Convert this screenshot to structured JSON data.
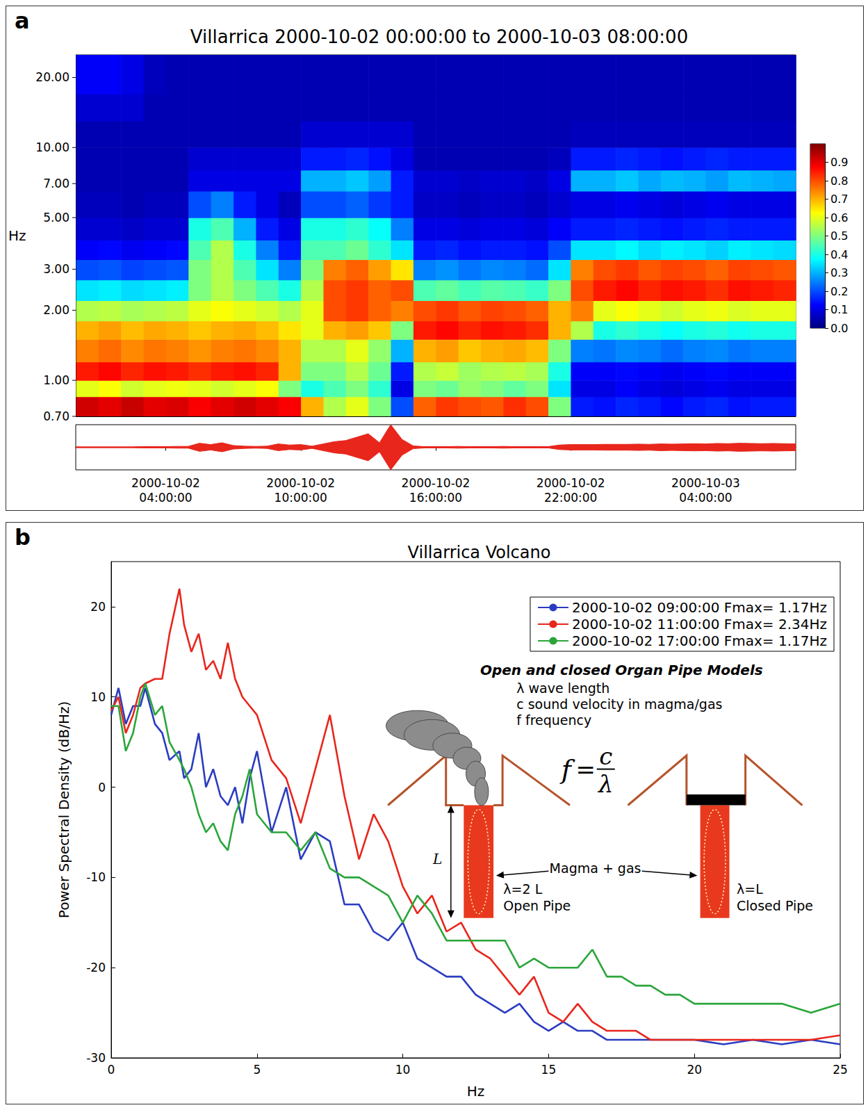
{
  "chart_data": [
    {
      "type": "heatmap",
      "panel": "a",
      "title": "Villarrica 2000-10-02 00:00:00 to 2000-10-03 08:00:00",
      "y_label": "Hz",
      "log": "y",
      "tick_labels": "y",
      "xlim": [
        "2000-10-02 00:00:00",
        "2000-10-03 08:00:00"
      ],
      "ylim": [
        0.7,
        25
      ],
      "yticks": [
        {
          "value": 0.7,
          "label": "0.70"
        },
        {
          "value": 1,
          "label": "1.00"
        },
        {
          "value": 2,
          "label": "2.00"
        },
        {
          "value": 3,
          "label": "3.00"
        },
        {
          "value": 5,
          "label": "5.00"
        },
        {
          "value": 7,
          "label": "7.00"
        },
        {
          "value": 10,
          "label": "10.00"
        },
        {
          "value": 20,
          "label": "20.00"
        }
      ],
      "x_edges": [
        "2000-10-02 00:00:00",
        "2000-10-02 01:00:00",
        "2000-10-02 02:00:00",
        "2000-10-02 03:00:00",
        "2000-10-02 04:00:00",
        "2000-10-02 05:00:00",
        "2000-10-02 06:00:00",
        "2000-10-02 07:00:00",
        "2000-10-02 08:00:00",
        "2000-10-02 09:00:00",
        "2000-10-02 10:00:00",
        "2000-10-02 11:00:00",
        "2000-10-02 12:00:00",
        "2000-10-02 13:00:00",
        "2000-10-02 14:00:00",
        "2000-10-02 15:00:00",
        "2000-10-02 16:00:00",
        "2000-10-02 17:00:00",
        "2000-10-02 18:00:00",
        "2000-10-02 19:00:00",
        "2000-10-02 20:00:00",
        "2000-10-02 21:00:00",
        "2000-10-02 22:00:00",
        "2000-10-02 23:00:00",
        "2000-10-03 00:00:00",
        "2000-10-03 01:00:00",
        "2000-10-03 02:00:00",
        "2000-10-03 03:00:00",
        "2000-10-03 04:00:00",
        "2000-10-03 05:00:00",
        "2000-10-03 06:00:00",
        "2000-10-03 07:00:00",
        "2000-10-03 08:00:00"
      ],
      "y_edges": [
        0.7,
        0.85,
        1.0,
        1.2,
        1.5,
        1.8,
        2.2,
        2.7,
        3.3,
        4,
        5,
        6.5,
        8,
        10,
        13,
        17,
        25
      ],
      "cells": [
        [
          0.92,
          0.9,
          0.93,
          0.9,
          0.91,
          0.88,
          0.9,
          0.92,
          0.9,
          0.88,
          0.7,
          0.55,
          0.6,
          0.5,
          0.2,
          0.78,
          0.82,
          0.8,
          0.79,
          0.83,
          0.8,
          0.5,
          0.15,
          0.14,
          0.16,
          0.15,
          0.13,
          0.15,
          0.16,
          0.14,
          0.15,
          0.15
        ],
        [
          0.6,
          0.62,
          0.58,
          0.6,
          0.61,
          0.6,
          0.58,
          0.6,
          0.62,
          0.5,
          0.4,
          0.45,
          0.5,
          0.42,
          0.1,
          0.5,
          0.48,
          0.52,
          0.5,
          0.47,
          0.5,
          0.35,
          0.1,
          0.1,
          0.12,
          0.1,
          0.09,
          0.1,
          0.11,
          0.1,
          0.1,
          0.1
        ],
        [
          0.85,
          0.87,
          0.84,
          0.86,
          0.85,
          0.83,
          0.85,
          0.86,
          0.84,
          0.7,
          0.5,
          0.5,
          0.55,
          0.48,
          0.15,
          0.55,
          0.57,
          0.53,
          0.55,
          0.56,
          0.54,
          0.4,
          0.12,
          0.12,
          0.13,
          0.12,
          0.11,
          0.12,
          0.13,
          0.12,
          0.12,
          0.12
        ],
        [
          0.75,
          0.77,
          0.74,
          0.76,
          0.75,
          0.73,
          0.75,
          0.76,
          0.74,
          0.7,
          0.55,
          0.55,
          0.6,
          0.52,
          0.3,
          0.7,
          0.72,
          0.68,
          0.7,
          0.71,
          0.69,
          0.5,
          0.25,
          0.24,
          0.26,
          0.25,
          0.23,
          0.25,
          0.26,
          0.24,
          0.25,
          0.25
        ],
        [
          0.7,
          0.72,
          0.69,
          0.71,
          0.7,
          0.68,
          0.7,
          0.71,
          0.69,
          0.65,
          0.6,
          0.7,
          0.72,
          0.68,
          0.5,
          0.85,
          0.87,
          0.84,
          0.86,
          0.85,
          0.83,
          0.7,
          0.55,
          0.4,
          0.42,
          0.4,
          0.38,
          0.4,
          0.41,
          0.39,
          0.4,
          0.4
        ],
        [
          0.55,
          0.56,
          0.54,
          0.55,
          0.56,
          0.6,
          0.62,
          0.6,
          0.58,
          0.55,
          0.6,
          0.8,
          0.82,
          0.78,
          0.75,
          0.8,
          0.82,
          0.79,
          0.81,
          0.8,
          0.78,
          0.7,
          0.75,
          0.6,
          0.62,
          0.6,
          0.58,
          0.6,
          0.61,
          0.59,
          0.6,
          0.6
        ],
        [
          0.35,
          0.36,
          0.34,
          0.35,
          0.36,
          0.5,
          0.55,
          0.5,
          0.45,
          0.4,
          0.55,
          0.8,
          0.82,
          0.78,
          0.8,
          0.45,
          0.47,
          0.44,
          0.46,
          0.45,
          0.43,
          0.5,
          0.8,
          0.85,
          0.87,
          0.84,
          0.86,
          0.85,
          0.83,
          0.86,
          0.85,
          0.84
        ],
        [
          0.2,
          0.21,
          0.19,
          0.2,
          0.21,
          0.5,
          0.55,
          0.45,
          0.35,
          0.25,
          0.5,
          0.75,
          0.78,
          0.72,
          0.65,
          0.25,
          0.27,
          0.24,
          0.26,
          0.25,
          0.23,
          0.35,
          0.75,
          0.8,
          0.82,
          0.79,
          0.81,
          0.8,
          0.78,
          0.81,
          0.8,
          0.79
        ],
        [
          0.12,
          0.13,
          0.11,
          0.12,
          0.13,
          0.45,
          0.55,
          0.4,
          0.25,
          0.15,
          0.45,
          0.45,
          0.48,
          0.42,
          0.35,
          0.15,
          0.16,
          0.14,
          0.15,
          0.15,
          0.14,
          0.2,
          0.35,
          0.35,
          0.37,
          0.34,
          0.36,
          0.35,
          0.33,
          0.36,
          0.35,
          0.34
        ],
        [
          0.08,
          0.08,
          0.07,
          0.08,
          0.08,
          0.4,
          0.45,
          0.3,
          0.15,
          0.1,
          0.4,
          0.4,
          0.42,
          0.38,
          0.25,
          0.1,
          0.1,
          0.09,
          0.1,
          0.1,
          0.09,
          0.12,
          0.15,
          0.15,
          0.16,
          0.15,
          0.14,
          0.15,
          0.16,
          0.15,
          0.15,
          0.15
        ],
        [
          0.06,
          0.06,
          0.05,
          0.06,
          0.06,
          0.2,
          0.25,
          0.15,
          0.1,
          0.06,
          0.2,
          0.2,
          0.22,
          0.18,
          0.15,
          0.07,
          0.07,
          0.06,
          0.07,
          0.07,
          0.06,
          0.08,
          0.1,
          0.1,
          0.11,
          0.1,
          0.09,
          0.1,
          0.11,
          0.1,
          0.1,
          0.1
        ],
        [
          0.05,
          0.05,
          0.05,
          0.05,
          0.05,
          0.1,
          0.1,
          0.1,
          0.1,
          0.1,
          0.3,
          0.3,
          0.32,
          0.28,
          0.15,
          0.08,
          0.08,
          0.07,
          0.08,
          0.08,
          0.07,
          0.1,
          0.3,
          0.3,
          0.32,
          0.29,
          0.31,
          0.3,
          0.28,
          0.31,
          0.3,
          0.29
        ],
        [
          0.05,
          0.05,
          0.05,
          0.05,
          0.05,
          0.08,
          0.08,
          0.08,
          0.08,
          0.08,
          0.15,
          0.15,
          0.16,
          0.14,
          0.1,
          0.05,
          0.05,
          0.05,
          0.05,
          0.05,
          0.05,
          0.06,
          0.15,
          0.15,
          0.16,
          0.15,
          0.14,
          0.15,
          0.16,
          0.15,
          0.15,
          0.15
        ],
        [
          0.05,
          0.05,
          0.05,
          0.05,
          0.05,
          0.05,
          0.05,
          0.05,
          0.05,
          0.05,
          0.08,
          0.08,
          0.08,
          0.08,
          0.08,
          0.05,
          0.05,
          0.05,
          0.05,
          0.05,
          0.05,
          0.05,
          0.06,
          0.06,
          0.06,
          0.06,
          0.06,
          0.06,
          0.06,
          0.06,
          0.06,
          0.06
        ],
        [
          0.08,
          0.08,
          0.08,
          0.05,
          0.05,
          0.05,
          0.05,
          0.05,
          0.05,
          0.05,
          0.05,
          0.05,
          0.05,
          0.05,
          0.05,
          0.05,
          0.05,
          0.05,
          0.05,
          0.05,
          0.05,
          0.05,
          0.05,
          0.05,
          0.05,
          0.05,
          0.05,
          0.05,
          0.05,
          0.05,
          0.05,
          0.05
        ],
        [
          0.12,
          0.12,
          0.1,
          0.06,
          0.05,
          0.05,
          0.05,
          0.05,
          0.05,
          0.05,
          0.05,
          0.05,
          0.05,
          0.05,
          0.05,
          0.05,
          0.05,
          0.05,
          0.05,
          0.05,
          0.05,
          0.05,
          0.05,
          0.05,
          0.05,
          0.05,
          0.05,
          0.05,
          0.05,
          0.05,
          0.05,
          0.05
        ]
      ],
      "colorbar": {
        "range": [
          0,
          1
        ],
        "ticks": [
          {
            "value": 0,
            "label": "0.0"
          },
          {
            "value": 0.1,
            "label": "0.1"
          },
          {
            "value": 0.2,
            "label": "0.2"
          },
          {
            "value": 0.3,
            "label": "0.3"
          },
          {
            "value": 0.4,
            "label": "0.4"
          },
          {
            "value": 0.5,
            "label": "0.5"
          },
          {
            "value": 0.6,
            "label": "0.6"
          },
          {
            "value": 0.7,
            "label": "0.7"
          },
          {
            "value": 0.8,
            "label": "0.8"
          },
          {
            "value": 0.9,
            "label": "0.9"
          }
        ]
      }
    },
    {
      "type": "envelope",
      "tick_labels": "x",
      "color": "#e8261c",
      "xlim": [
        "2000-10-02 00:00:00",
        "2000-10-03 08:00:00"
      ],
      "ylim": [
        -1,
        1
      ],
      "xticks": [
        "2000-10-02 04:00:00",
        "2000-10-02 10:00:00",
        "2000-10-02 16:00:00",
        "2000-10-02 22:00:00",
        "2000-10-03 04:00:00"
      ],
      "x": [
        "2000-10-02 00:00:00",
        "2000-10-02 00:30:00",
        "2000-10-02 01:00:00",
        "2000-10-02 01:30:00",
        "2000-10-02 02:00:00",
        "2000-10-02 02:30:00",
        "2000-10-02 03:00:00",
        "2000-10-02 03:30:00",
        "2000-10-02 04:00:00",
        "2000-10-02 04:30:00",
        "2000-10-02 05:00:00",
        "2000-10-02 05:30:00",
        "2000-10-02 06:00:00",
        "2000-10-02 06:30:00",
        "2000-10-02 07:00:00",
        "2000-10-02 07:30:00",
        "2000-10-02 08:00:00",
        "2000-10-02 08:30:00",
        "2000-10-02 09:00:00",
        "2000-10-02 09:30:00",
        "2000-10-02 10:00:00",
        "2000-10-02 10:30:00",
        "2000-10-02 11:00:00",
        "2000-10-02 11:30:00",
        "2000-10-02 12:00:00",
        "2000-10-02 12:30:00",
        "2000-10-02 13:00:00",
        "2000-10-02 13:30:00",
        "2000-10-02 14:00:00",
        "2000-10-02 14:30:00",
        "2000-10-02 15:00:00",
        "2000-10-02 15:30:00",
        "2000-10-02 16:00:00",
        "2000-10-02 16:30:00",
        "2000-10-02 17:00:00",
        "2000-10-02 17:30:00",
        "2000-10-02 18:00:00",
        "2000-10-02 18:30:00",
        "2000-10-02 19:00:00",
        "2000-10-02 19:30:00",
        "2000-10-02 20:00:00",
        "2000-10-02 20:30:00",
        "2000-10-02 21:00:00",
        "2000-10-02 21:30:00",
        "2000-10-02 22:00:00",
        "2000-10-02 22:30:00",
        "2000-10-02 23:00:00",
        "2000-10-02 23:30:00",
        "2000-10-03 00:00:00",
        "2000-10-03 00:30:00",
        "2000-10-03 01:00:00",
        "2000-10-03 01:30:00",
        "2000-10-03 02:00:00",
        "2000-10-03 02:30:00",
        "2000-10-03 03:00:00",
        "2000-10-03 03:30:00",
        "2000-10-03 04:00:00",
        "2000-10-03 04:30:00",
        "2000-10-03 05:00:00",
        "2000-10-03 05:30:00",
        "2000-10-03 06:00:00",
        "2000-10-03 06:30:00",
        "2000-10-03 07:00:00",
        "2000-10-03 07:30:00",
        "2000-10-03 08:00:00"
      ],
      "values": [
        0.02,
        0.02,
        0.02,
        0.02,
        0.02,
        0.02,
        0.03,
        0.03,
        0.03,
        0.04,
        0.04,
        0.18,
        0.12,
        0.2,
        0.08,
        0.05,
        0.04,
        0.05,
        0.15,
        0.1,
        0.12,
        0.05,
        0.15,
        0.25,
        0.3,
        0.45,
        0.6,
        0.2,
        1.0,
        0.35,
        0.06,
        0.03,
        0.03,
        0.03,
        0.04,
        0.03,
        0.03,
        0.03,
        0.04,
        0.03,
        0.03,
        0.03,
        0.03,
        0.1,
        0.12,
        0.12,
        0.12,
        0.13,
        0.13,
        0.13,
        0.14,
        0.13,
        0.15,
        0.14,
        0.15,
        0.16,
        0.15,
        0.17,
        0.16,
        0.18,
        0.17,
        0.16,
        0.17,
        0.16,
        0.15
      ]
    },
    {
      "type": "line",
      "panel": "b",
      "title": "Villarrica Volcano",
      "x_label": "Hz",
      "y_label": "Power Spectral Density (dB/Hz)",
      "xlim": [
        0,
        25
      ],
      "ylim": [
        -30,
        25
      ],
      "xticks": [
        0,
        5,
        10,
        15,
        20,
        25
      ],
      "yticks": [
        -30,
        -20,
        -10,
        0,
        10,
        20
      ],
      "grid": false,
      "legend": "upper right",
      "x": [
        0,
        0.25,
        0.5,
        0.75,
        1,
        1.17,
        1.5,
        1.75,
        2,
        2.34,
        2.5,
        2.75,
        3,
        3.25,
        3.5,
        3.75,
        4,
        4.25,
        4.5,
        4.75,
        5,
        5.5,
        6,
        6.5,
        7,
        7.5,
        8,
        8.5,
        9,
        9.5,
        10,
        10.5,
        11,
        11.5,
        12,
        12.5,
        13,
        13.5,
        14,
        14.5,
        15,
        15.5,
        16,
        16.5,
        17,
        17.5,
        18,
        18.5,
        19,
        19.5,
        20,
        21,
        22,
        23,
        24,
        25
      ],
      "series": [
        {
          "name": "2000-10-02 09:00:00 Fmax= 1.17Hz",
          "color": "#2a3cc0",
          "values": [
            8,
            11,
            7,
            9,
            9,
            11,
            7,
            6,
            3,
            4,
            1,
            2,
            6,
            0,
            2,
            -1,
            -2,
            0,
            -4,
            1,
            4,
            -5,
            0,
            -8,
            -5,
            -6,
            -13,
            -13,
            -16,
            -17,
            -15,
            -19,
            -20,
            -21,
            -21,
            -23,
            -24,
            -25,
            -24,
            -26,
            -27,
            -26,
            -27,
            -27,
            -28,
            -28,
            -28,
            -28,
            -28,
            -28,
            -28,
            -28.5,
            -28,
            -28.5,
            -28,
            -28.5
          ]
        },
        {
          "name": "2000-10-02 11:00:00 Fmax= 2.34Hz",
          "color": "#e8261c",
          "values": [
            8.5,
            10,
            6,
            8,
            11,
            11.5,
            12,
            12,
            17,
            22,
            18,
            15,
            17,
            13,
            14,
            12,
            16,
            12,
            10,
            9,
            8,
            3,
            1,
            -4,
            2,
            8,
            -1,
            -8,
            -3,
            -6,
            -11,
            -14,
            -12,
            -16,
            -15,
            -18,
            -19,
            -21,
            -23,
            -21,
            -25,
            -26,
            -24,
            -26,
            -27,
            -27,
            -27,
            -28,
            -28,
            -28,
            -28,
            -28,
            -28,
            -28,
            -28,
            -27.5
          ]
        },
        {
          "name": "2000-10-02 17:00:00 Fmax= 1.17Hz",
          "color": "#2aa53a",
          "values": [
            9,
            9,
            4,
            6,
            10,
            11.5,
            8,
            9,
            5,
            3,
            2,
            0,
            -3,
            -5,
            -4,
            -6,
            -7,
            -3,
            -1,
            2,
            -3,
            -5,
            -5,
            -7,
            -5,
            -9,
            -10,
            -10,
            -11,
            -12,
            -15,
            -12,
            -14,
            -17,
            -17,
            -17,
            -17,
            -17,
            -20,
            -19,
            -20,
            -20,
            -20,
            -18,
            -21,
            -21,
            -22,
            -22,
            -23,
            -23,
            -24,
            -24,
            -24,
            -24,
            -25,
            -24
          ]
        }
      ],
      "annotations": {
        "title": "Open and closed Organ Pipe Models",
        "lines": [
          "λ wave length",
          "c sound velocity in magma/gas",
          "f frequency"
        ],
        "formula": {
          "left": "f",
          "sign": "=",
          "numerator": "c",
          "denominator": "λ"
        },
        "length_label": "L",
        "material_label": "Magma + gas",
        "open": {
          "wavelength": "λ=2 L",
          "label": "Open Pipe"
        },
        "closed": {
          "wavelength": "λ=L",
          "label": "Closed Pipe"
        }
      }
    }
  ]
}
